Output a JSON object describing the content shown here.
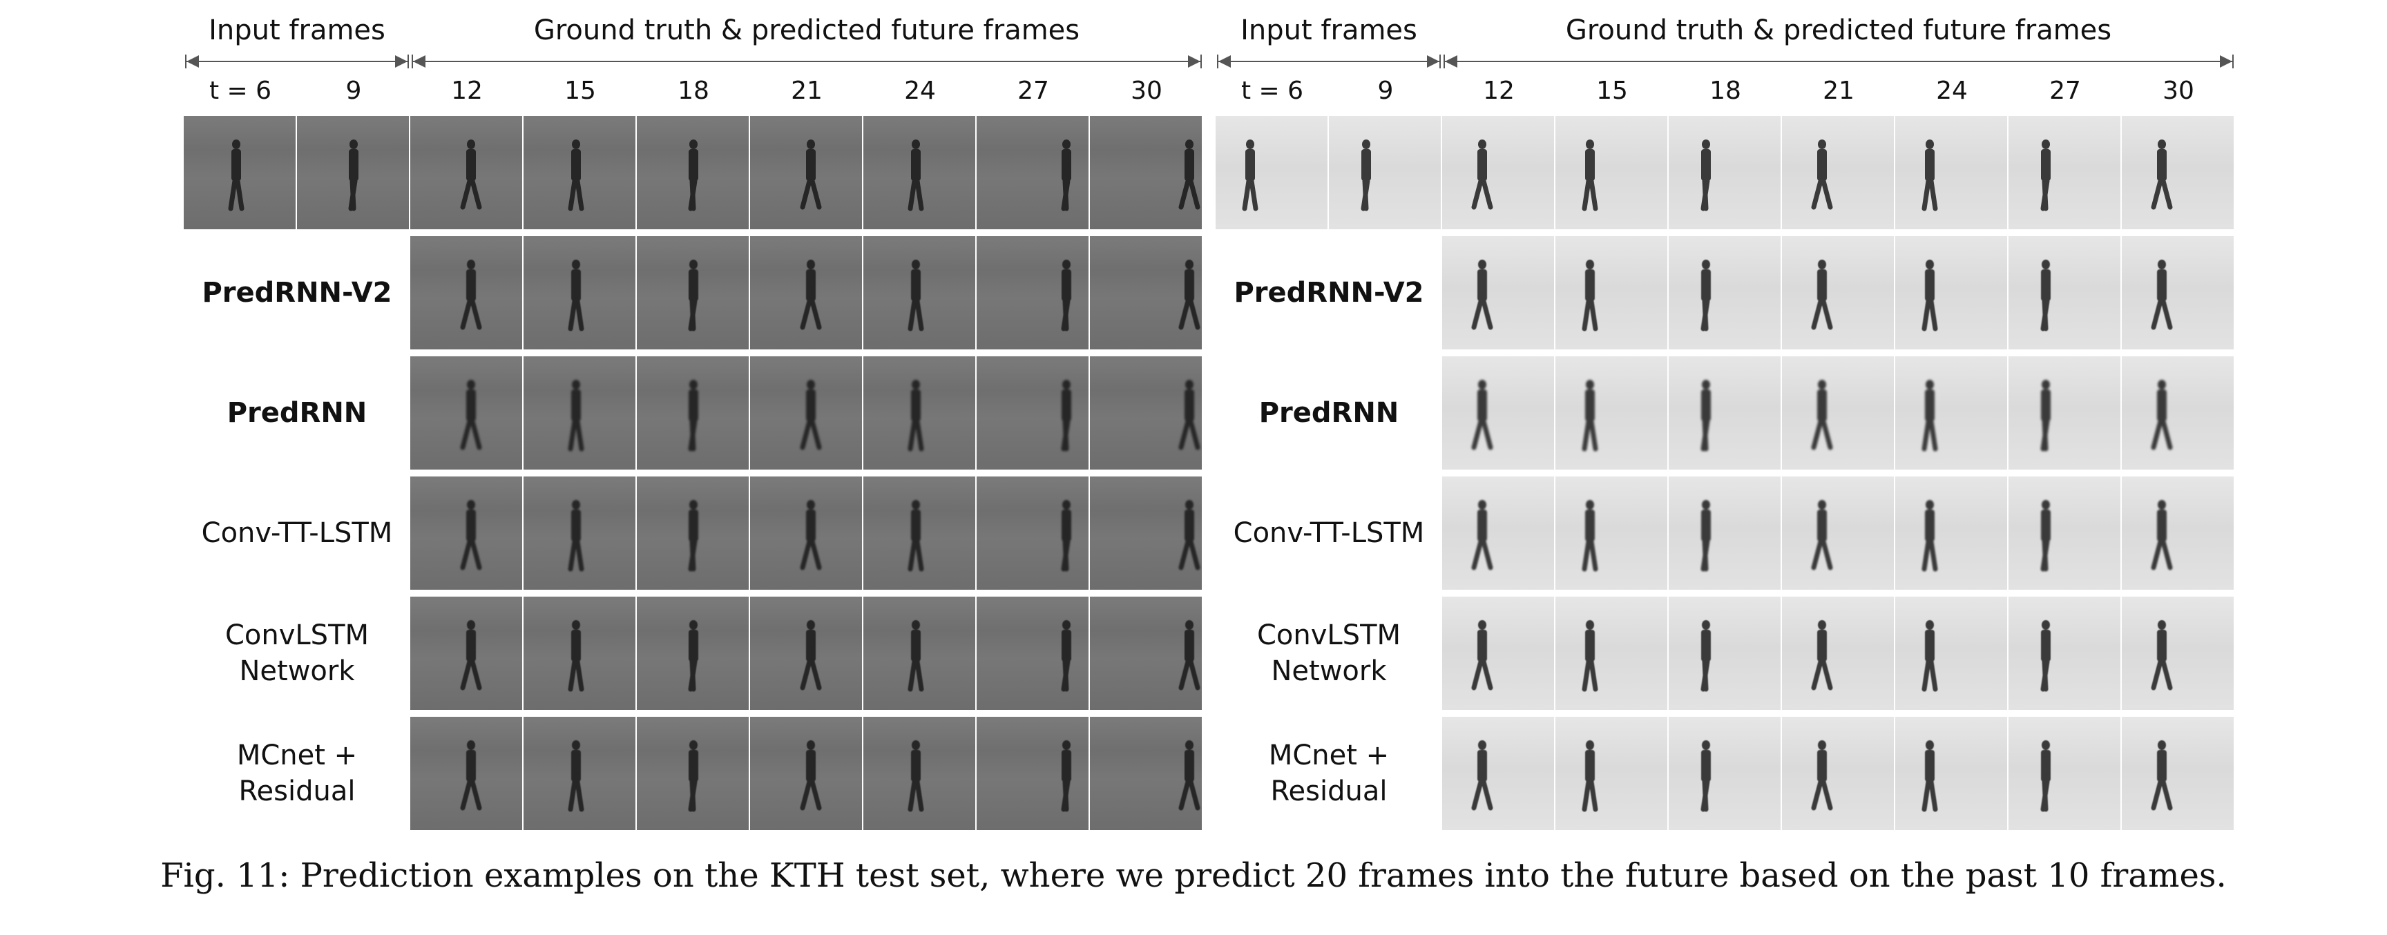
{
  "header": {
    "input_frames": "Input frames",
    "ground_truth": "Ground truth & predicted future frames"
  },
  "time_labels": [
    "t = 6",
    "9",
    "12",
    "15",
    "18",
    "21",
    "24",
    "27",
    "30"
  ],
  "rows": [
    {
      "label_lines": [
        ""
      ],
      "bold": false,
      "has_inputs": true
    },
    {
      "label_lines": [
        "PredRNN-V2"
      ],
      "bold": true,
      "has_inputs": false
    },
    {
      "label_lines": [
        "PredRNN"
      ],
      "bold": true,
      "has_inputs": false
    },
    {
      "label_lines": [
        "Conv-TT-LSTM"
      ],
      "bold": false,
      "has_inputs": false
    },
    {
      "label_lines": [
        "ConvLSTM",
        "Network"
      ],
      "bold": false,
      "has_inputs": false
    },
    {
      "label_lines": [
        "MCnet +",
        "Residual"
      ],
      "bold": false,
      "has_inputs": false
    }
  ],
  "panels": [
    {
      "theme": "dark",
      "colors": {
        "bg": "#767676",
        "person": "#262626"
      }
    },
    {
      "theme": "light",
      "colors": {
        "bg": "#e0e0e0",
        "person": "#3a3a3a"
      }
    }
  ],
  "caption": "Fig. 11: Prediction examples on the KTH test set, where we predict 20 frames into the future based on the past 10 frames."
}
